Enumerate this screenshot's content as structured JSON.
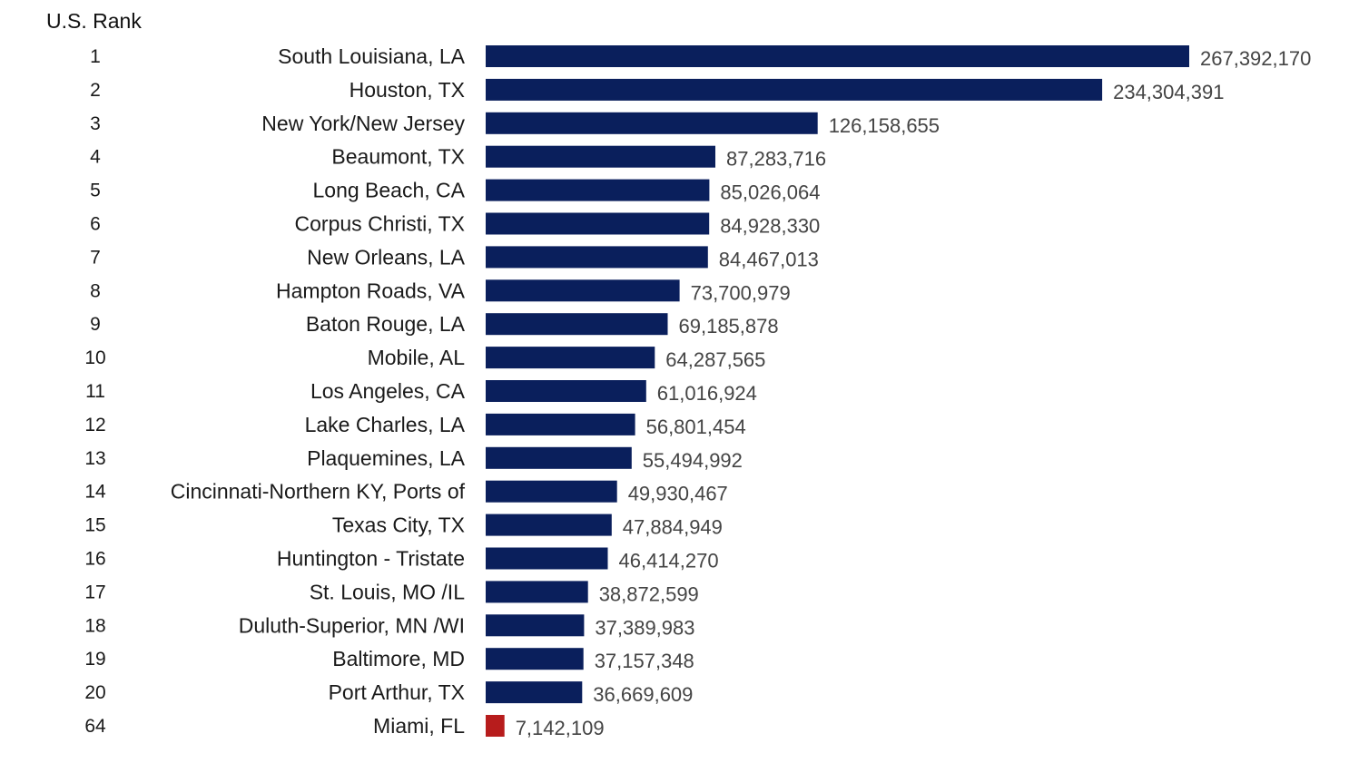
{
  "rank_header": "U.S. Rank",
  "colors": {
    "bar_default": "#0a1f5c",
    "bar_highlight": "#b71c1c",
    "label_text": "#1a1a1a",
    "value_text": "#444444"
  },
  "chart_data": {
    "type": "bar",
    "orientation": "horizontal",
    "title": "",
    "xlabel": "",
    "ylabel": "",
    "xlim": [
      0,
      267392170
    ],
    "grid": false,
    "legend": "none",
    "categories": [
      "South Louisiana, LA",
      "Houston, TX",
      "New York/New Jersey",
      "Beaumont, TX",
      "Long Beach, CA",
      "Corpus Christi, TX",
      "New Orleans, LA",
      "Hampton Roads, VA",
      "Baton Rouge, LA",
      "Mobile, AL",
      "Los Angeles, CA",
      "Lake Charles, LA",
      "Plaquemines, LA",
      "Cincinnati-Northern KY, Ports of",
      "Texas City, TX",
      "Huntington - Tristate",
      "St. Louis, MO /IL",
      "Duluth-Superior, MN /WI",
      "Baltimore, MD",
      "Port Arthur, TX",
      "Miami, FL"
    ],
    "ranks": [
      "1",
      "2",
      "3",
      "4",
      "5",
      "6",
      "7",
      "8",
      "9",
      "10",
      "11",
      "12",
      "13",
      "14",
      "15",
      "16",
      "17",
      "18",
      "19",
      "20",
      "64"
    ],
    "values": [
      267392170,
      234304391,
      126158655,
      87283716,
      85026064,
      84928330,
      84467013,
      73700979,
      69185878,
      64287565,
      61016924,
      56801454,
      55494992,
      49930467,
      47884949,
      46414270,
      38872599,
      37389983,
      37157348,
      36669609,
      7142109
    ],
    "value_labels": [
      "267,392,170",
      "234,304,391",
      "126,158,655",
      "87,283,716",
      "85,026,064",
      "84,928,330",
      "84,467,013",
      "73,700,979",
      "69,185,878",
      "64,287,565",
      "61,016,924",
      "56,801,454",
      "55,494,992",
      "49,930,467",
      "47,884,949",
      "46,414,270",
      "38,872,599",
      "37,389,983",
      "37,157,348",
      "36,669,609",
      "7,142,109"
    ],
    "highlight_index": 20
  }
}
